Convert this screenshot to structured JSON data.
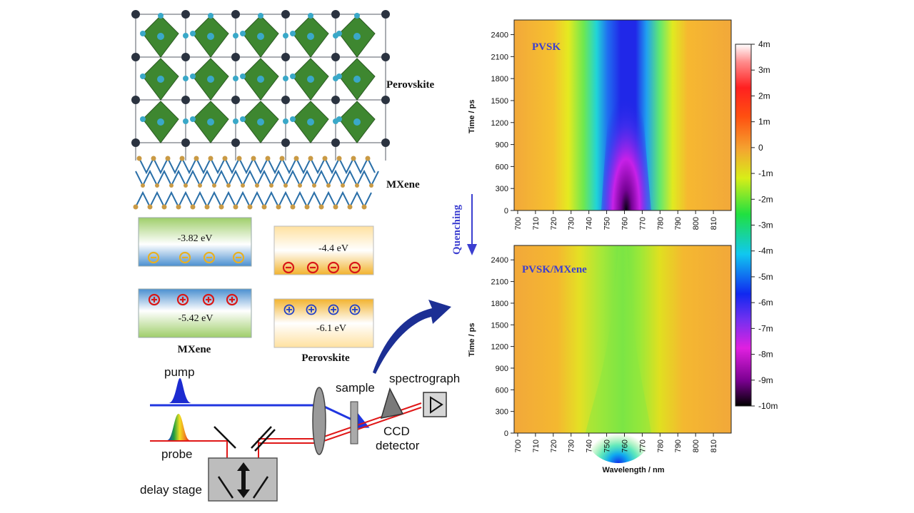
{
  "crystal": {
    "perovskite_label": "Perovskite",
    "mxene_label": "MXene",
    "colors": {
      "octahedron": "#2e7d1f",
      "a_site": "#3aa8c8",
      "b_site": "#2b3340",
      "mxene_bond": "#2a6fa8",
      "mxene_atom": "#c99a45"
    }
  },
  "energy": {
    "mxene_cb": {
      "value": "-3.82  eV",
      "charge_sign": "−",
      "charge_count": 4
    },
    "mxene_vb": {
      "value": "-5.42  eV",
      "charge_sign": "+",
      "charge_count": 4
    },
    "pvsk_cb": {
      "value": "-4.4  eV",
      "charge_sign": "−",
      "charge_count": 4
    },
    "pvsk_vb": {
      "value": "-6.1  eV",
      "charge_sign": "+",
      "charge_count": 4
    },
    "mxene_label": "MXene",
    "pvsk_label": "Perovskite"
  },
  "setup": {
    "pump": "pump",
    "probe": "probe",
    "delay_stage": "delay stage",
    "sample": "sample",
    "spectrograph": "spectrograph",
    "ccd_line1": "CCD",
    "ccd_line2": "detector",
    "colors": {
      "pump_beam": "#2036e0",
      "probe_beam": "#e01818"
    }
  },
  "quenching_label": "Quenching",
  "chart_data": [
    {
      "type": "heatmap",
      "title": "PVSK",
      "xlabel": "",
      "ylabel": "Time / ps",
      "x_ticks": [
        700,
        710,
        720,
        730,
        740,
        750,
        760,
        770,
        780,
        790,
        800,
        810
      ],
      "y_ticks": [
        0,
        300,
        600,
        900,
        1200,
        1500,
        1800,
        2100,
        2400
      ],
      "xlim": [
        698,
        820
      ],
      "ylim": [
        0,
        2600
      ],
      "bleach_center_nm": 763,
      "min_value": "-10m",
      "min_value_at": [
        763,
        0
      ]
    },
    {
      "type": "heatmap",
      "title": "PVSK/MXene",
      "xlabel": "Wavelength / nm",
      "ylabel": "Time / ps",
      "x_ticks": [
        700,
        710,
        720,
        730,
        740,
        750,
        760,
        770,
        780,
        790,
        800,
        810
      ],
      "y_ticks": [
        0,
        300,
        600,
        900,
        1200,
        1500,
        1800,
        2100,
        2400
      ],
      "xlim": [
        698,
        820
      ],
      "ylim": [
        0,
        2600
      ],
      "bleach_center_nm": 763,
      "min_value": "-7m",
      "min_value_at": [
        763,
        0
      ]
    }
  ],
  "colorbar": {
    "ticks": [
      "4m",
      "3m",
      "2m",
      "1m",
      "0",
      "-1m",
      "-2m",
      "-3m",
      "-4m",
      "-5m",
      "-6m",
      "-7m",
      "-8m",
      "-9m",
      "-10m"
    ],
    "range": [
      4,
      -10
    ]
  }
}
